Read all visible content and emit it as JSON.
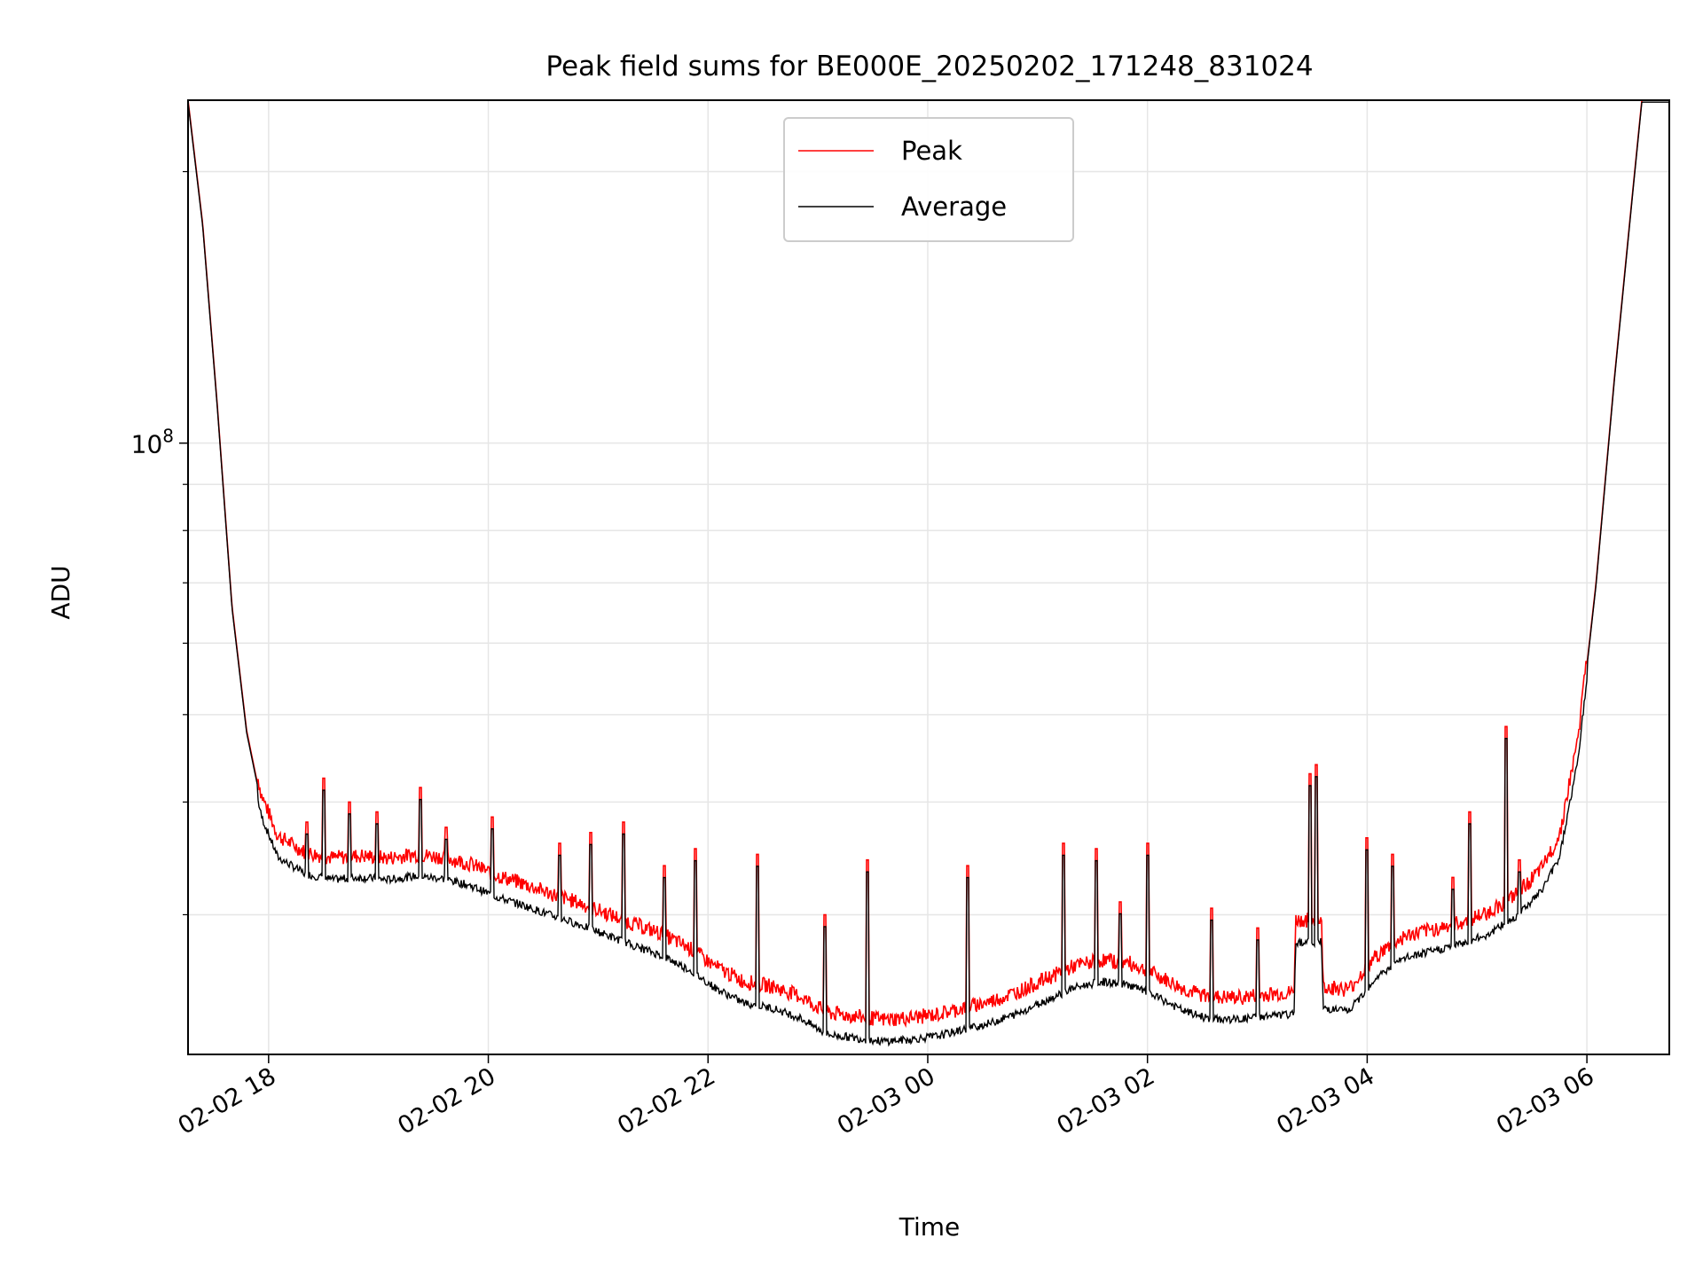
{
  "chart_data": {
    "type": "line",
    "title": "Peak field sums for BE000E_20250202_171248_831024",
    "xlabel": "Time",
    "ylabel": "ADU",
    "x_ticks": [
      "02-02 18",
      "02-02 20",
      "02-02 22",
      "02-03 00",
      "02-03 02",
      "02-03 04",
      "02-03 06"
    ],
    "xlim": [
      "2025-02-02 17:16",
      "2025-02-03 06:45"
    ],
    "yscale": "log",
    "ylim": [
      21000000,
      240000000
    ],
    "y_major_ticks": [
      {
        "value": 100000000,
        "base": "10",
        "exp": "8"
      }
    ],
    "y_minor_ticks": [
      30000000,
      40000000,
      50000000,
      60000000,
      70000000,
      80000000,
      90000000,
      200000000
    ],
    "grid": true,
    "legend": {
      "position": "upper center",
      "entries": [
        "Peak",
        "Average"
      ]
    },
    "colors": {
      "Peak": "#ff0000",
      "Average": "#000000"
    },
    "series": [
      {
        "name": "Peak",
        "color": "#ff0000",
        "points": [
          [
            "2025-02-02 17:16",
            240000000
          ],
          [
            "2025-02-02 17:24",
            175000000
          ],
          [
            "2025-02-02 17:32",
            110000000
          ],
          [
            "2025-02-02 17:40",
            66000000
          ],
          [
            "2025-02-02 17:48",
            48000000
          ],
          [
            "2025-02-02 17:56",
            40000000
          ],
          [
            "2025-02-02 18:05",
            36000000
          ],
          [
            "2025-02-02 18:20",
            34500000
          ],
          [
            "2025-02-02 18:35",
            34000000
          ],
          [
            "2025-02-02 18:50",
            34200000
          ],
          [
            "2025-02-02 19:05",
            34000000
          ],
          [
            "2025-02-02 19:20",
            34300000
          ],
          [
            "2025-02-02 19:35",
            34100000
          ],
          [
            "2025-02-02 19:50",
            33500000
          ],
          [
            "2025-02-02 20:05",
            32500000
          ],
          [
            "2025-02-02 20:20",
            31800000
          ],
          [
            "2025-02-02 20:35",
            31000000
          ],
          [
            "2025-02-02 20:50",
            30300000
          ],
          [
            "2025-02-02 21:05",
            29500000
          ],
          [
            "2025-02-02 21:20",
            28700000
          ],
          [
            "2025-02-02 21:35",
            28000000
          ],
          [
            "2025-02-02 21:50",
            27000000
          ],
          [
            "2025-02-02 22:05",
            25700000
          ],
          [
            "2025-02-02 22:20",
            24800000
          ],
          [
            "2025-02-02 22:35",
            24500000
          ],
          [
            "2025-02-02 22:50",
            23900000
          ],
          [
            "2025-02-02 23:05",
            22900000
          ],
          [
            "2025-02-02 23:20",
            22700000
          ],
          [
            "2025-02-02 23:35",
            22500000
          ],
          [
            "2025-02-02 23:50",
            22600000
          ],
          [
            "2025-02-03 00:05",
            22800000
          ],
          [
            "2025-02-03 00:20",
            23200000
          ],
          [
            "2025-02-03 00:35",
            23600000
          ],
          [
            "2025-02-03 00:50",
            24200000
          ],
          [
            "2025-02-03 01:05",
            25000000
          ],
          [
            "2025-02-03 01:20",
            25800000
          ],
          [
            "2025-02-03 01:35",
            26200000
          ],
          [
            "2025-02-03 01:50",
            26000000
          ],
          [
            "2025-02-03 02:05",
            25200000
          ],
          [
            "2025-02-03 02:20",
            24300000
          ],
          [
            "2025-02-03 02:35",
            23800000
          ],
          [
            "2025-02-03 02:50",
            23800000
          ],
          [
            "2025-02-03 03:05",
            24000000
          ],
          [
            "2025-02-03 03:20",
            24100000
          ],
          [
            "2025-02-03 03:21",
            29000000
          ],
          [
            "2025-02-03 03:35",
            29000000
          ],
          [
            "2025-02-03 03:36",
            24500000
          ],
          [
            "2025-02-03 03:50",
            24300000
          ],
          [
            "2025-02-03 04:05",
            26500000
          ],
          [
            "2025-02-03 04:20",
            27800000
          ],
          [
            "2025-02-03 04:35",
            28300000
          ],
          [
            "2025-02-03 04:50",
            28800000
          ],
          [
            "2025-02-03 05:05",
            29500000
          ],
          [
            "2025-02-03 05:20",
            30800000
          ],
          [
            "2025-02-03 05:35",
            33000000
          ],
          [
            "2025-02-03 05:45",
            36000000
          ],
          [
            "2025-02-03 05:55",
            46000000
          ],
          [
            "2025-02-03 06:05",
            70000000
          ],
          [
            "2025-02-03 06:15",
            118000000
          ],
          [
            "2025-02-03 06:25",
            190000000
          ],
          [
            "2025-02-03 06:30",
            240000000
          ],
          [
            "2025-02-03 06:45",
            240000000
          ]
        ],
        "spikes": [
          [
            "2025-02-02 18:21",
            38000000
          ],
          [
            "2025-02-02 18:30",
            42500000
          ],
          [
            "2025-02-02 18:44",
            40000000
          ],
          [
            "2025-02-02 18:59",
            39000000
          ],
          [
            "2025-02-02 19:23",
            41500000
          ],
          [
            "2025-02-02 19:37",
            37500000
          ],
          [
            "2025-02-02 20:02",
            38500000
          ],
          [
            "2025-02-02 20:39",
            36000000
          ],
          [
            "2025-02-02 20:56",
            37000000
          ],
          [
            "2025-02-02 21:14",
            38000000
          ],
          [
            "2025-02-02 21:36",
            34000000
          ],
          [
            "2025-02-02 21:53",
            35500000
          ],
          [
            "2025-02-02 22:27",
            35000000
          ],
          [
            "2025-02-02 23:04",
            30000000
          ],
          [
            "2025-02-02 23:27",
            34500000
          ],
          [
            "2025-02-03 00:22",
            34000000
          ],
          [
            "2025-02-03 01:14",
            36000000
          ],
          [
            "2025-02-03 01:32",
            35500000
          ],
          [
            "2025-02-03 01:45",
            31000000
          ],
          [
            "2025-02-03 02:00",
            36000000
          ],
          [
            "2025-02-03 02:35",
            30500000
          ],
          [
            "2025-02-03 03:00",
            29000000
          ],
          [
            "2025-02-03 03:29",
            43000000
          ],
          [
            "2025-02-03 03:32",
            44000000
          ],
          [
            "2025-02-03 04:00",
            36500000
          ],
          [
            "2025-02-03 04:14",
            35000000
          ],
          [
            "2025-02-03 04:47",
            33000000
          ],
          [
            "2025-02-03 04:56",
            39000000
          ],
          [
            "2025-02-03 05:16",
            48500000
          ],
          [
            "2025-02-03 05:23",
            34500000
          ]
        ]
      },
      {
        "name": "Average",
        "color": "#000000",
        "offset_ratio": 0.965
      }
    ]
  }
}
